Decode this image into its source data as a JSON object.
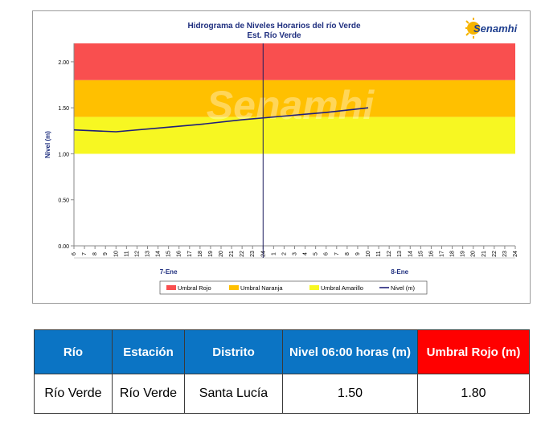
{
  "chart_data": {
    "type": "line",
    "title": "Hidrograma de Niveles Horarios del río Verde",
    "subtitle": "Est. Río Verde",
    "ylabel": "Nivel (m)",
    "ylim": [
      0,
      2.2
    ],
    "y_ticks": [
      "0.00",
      "0.50",
      "1.00",
      "1.50",
      "2.00"
    ],
    "x_ticks": [
      "6",
      "7",
      "8",
      "9",
      "10",
      "11",
      "12",
      "13",
      "14",
      "15",
      "16",
      "17",
      "18",
      "19",
      "20",
      "21",
      "22",
      "23",
      "24",
      "1",
      "2",
      "3",
      "4",
      "5",
      "6",
      "7",
      "8",
      "9",
      "10",
      "11",
      "12",
      "13",
      "14",
      "15",
      "16",
      "17",
      "18",
      "19",
      "20",
      "21",
      "22",
      "23",
      "24"
    ],
    "day_labels": [
      "7-Ene",
      "8-Ene"
    ],
    "bands": [
      {
        "name": "Umbral Rojo",
        "from": 1.8,
        "to": 2.2,
        "color": "#f94f4f"
      },
      {
        "name": "Umbral Naranja",
        "from": 1.4,
        "to": 1.8,
        "color": "#ffc000"
      },
      {
        "name": "Umbral Amarillo",
        "from": 1.0,
        "to": 1.4,
        "color": "#f7f722"
      }
    ],
    "series": [
      {
        "name": "Nivel (m)",
        "color": "#1f1f7a",
        "x_index": [
          0,
          4,
          8,
          12,
          16,
          20,
          24,
          28
        ],
        "values": [
          1.26,
          1.24,
          1.28,
          1.32,
          1.37,
          1.41,
          1.45,
          1.5
        ]
      }
    ],
    "current_marker_index": 18,
    "legend": [
      "Umbral Rojo",
      "Umbral Naranja",
      "Umbral Amarillo",
      "Nivel (m)"
    ],
    "legend_placement": "bottom",
    "grid": false
  },
  "logo": {
    "text": "Senamhi"
  },
  "watermark": "Senamhi",
  "table": {
    "headers": [
      "Río",
      "Estación",
      "Distrito",
      "Nivel 06:00 horas (m)",
      "Umbral Rojo (m)"
    ],
    "row": [
      "Río Verde",
      "Río Verde",
      "Santa Lucía",
      "1.50",
      "1.80"
    ]
  }
}
